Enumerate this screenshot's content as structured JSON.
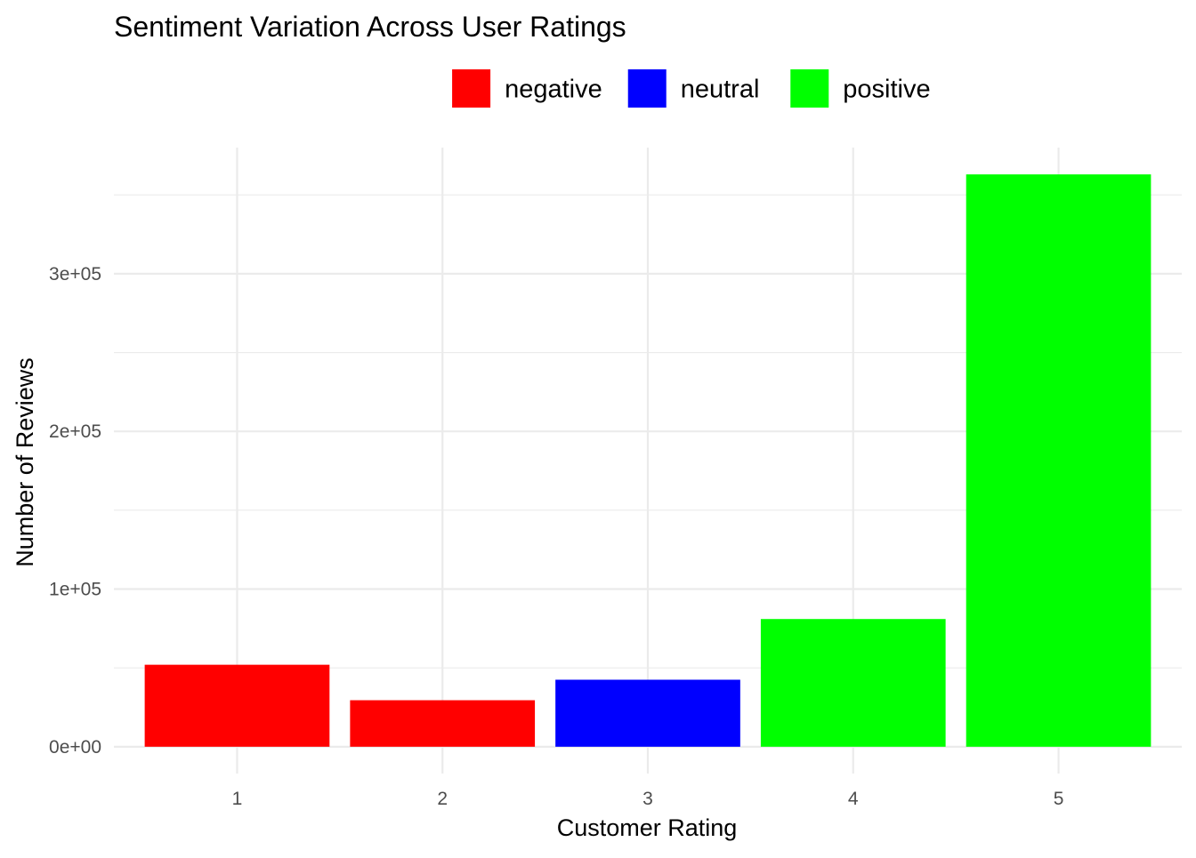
{
  "chart_data": {
    "type": "bar",
    "title": "Sentiment Variation Across User Ratings",
    "xlabel": "Customer Rating",
    "ylabel": "Number of Reviews",
    "categories": [
      "1",
      "2",
      "3",
      "4",
      "5"
    ],
    "values": [
      52000,
      29500,
      42500,
      81000,
      363000
    ],
    "bar_sentiment": [
      "negative",
      "negative",
      "neutral",
      "positive",
      "positive"
    ],
    "legend": {
      "placement": "top",
      "entries": [
        {
          "label": "negative",
          "color": "#ff0000"
        },
        {
          "label": "neutral",
          "color": "#0000ff"
        },
        {
          "label": "positive",
          "color": "#00ff00"
        }
      ]
    },
    "ylim": [
      -17000,
      380000
    ],
    "y_ticks": [
      {
        "value": 0,
        "label": "0e+00"
      },
      {
        "value": 100000,
        "label": "1e+05"
      },
      {
        "value": 200000,
        "label": "2e+05"
      },
      {
        "value": 300000,
        "label": "3e+05"
      }
    ],
    "grid": true
  }
}
